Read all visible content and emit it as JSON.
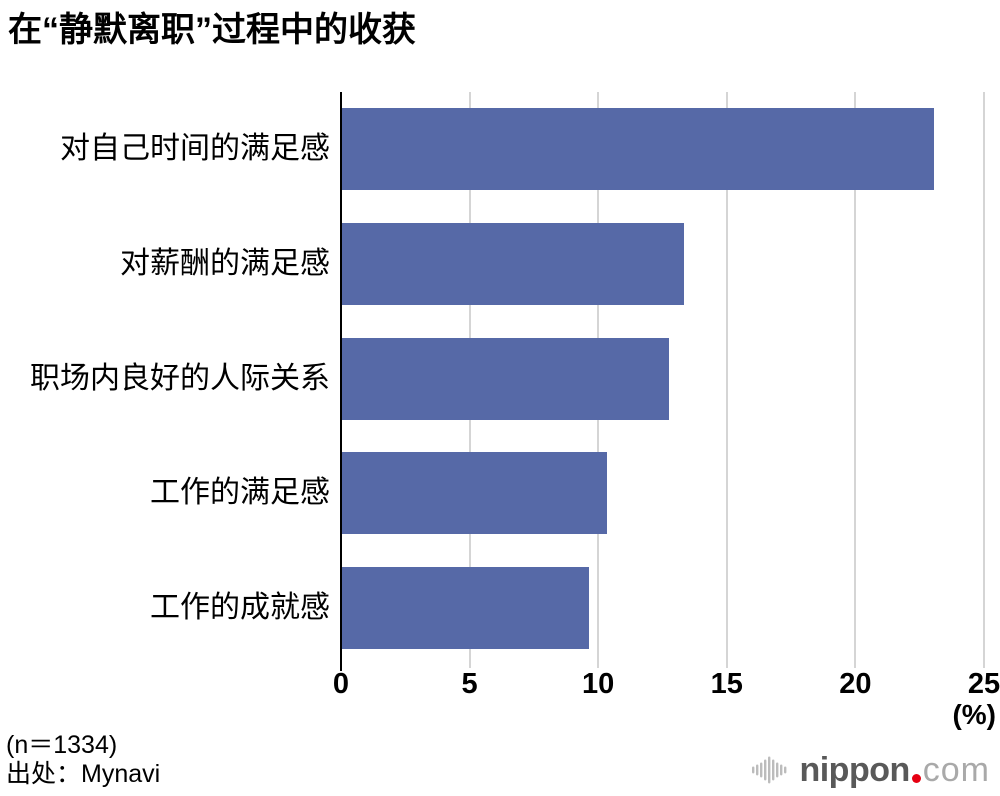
{
  "title": "在“静默离职”过程中的收获",
  "chart_data": {
    "type": "bar",
    "orientation": "horizontal",
    "title": "在“静默离职”过程中的收获",
    "categories": [
      "对自己时间的满足感",
      "对薪酬的满足感",
      "职场内良好的人际关系",
      "工作的满足感",
      "工作的成就感"
    ],
    "values": [
      23.0,
      13.3,
      12.7,
      10.3,
      9.6
    ],
    "xlabel": "(%)",
    "xlim": [
      0,
      25
    ],
    "xticks": [
      0,
      5,
      10,
      15,
      20,
      25
    ],
    "grid": true,
    "legend": "none",
    "bar_color": "#5669a7",
    "gridline_color": "#d5d5d5",
    "axis_color": "#000000"
  },
  "footer": {
    "sample_size": "(n＝1334)",
    "source": "出处：Mynavi"
  },
  "logo": {
    "name": "nippon.com",
    "text_main": "nippon",
    "text_suffix": "com",
    "dot_color": "#e60012",
    "icon_color": "#bcbcbc",
    "text_main_color": "#595959",
    "text_suffix_color": "#a9a9a9"
  }
}
